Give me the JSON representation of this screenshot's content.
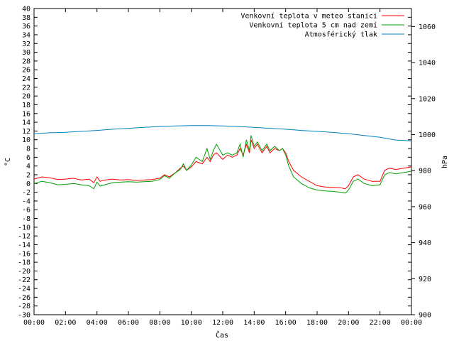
{
  "chart_data": {
    "type": "line",
    "xlabel": "Čas",
    "ylabel_left": "°C",
    "ylabel_right": "hPa",
    "x_ticks": [
      "00:00",
      "02:00",
      "04:00",
      "06:00",
      "08:00",
      "10:00",
      "12:00",
      "14:00",
      "16:00",
      "18:00",
      "20:00",
      "22:00",
      "00:00"
    ],
    "x_range_hours": [
      0,
      24
    ],
    "ylim_left": [
      -30,
      40
    ],
    "ylim_right": [
      900,
      1070
    ],
    "y_ticks_left": [
      "40",
      "38",
      "36",
      "34",
      "32",
      "30",
      "28",
      "26",
      "24",
      "22",
      "20",
      "18",
      "16",
      "14",
      "12",
      "10",
      "8",
      "6",
      "4",
      "2",
      "0",
      "-2",
      "-4",
      "-6",
      "-8",
      "-10",
      "-12",
      "-14",
      "-16",
      "-18",
      "-20",
      "-22",
      "-24",
      "-26",
      "-28",
      "-30"
    ],
    "y_ticks_right": [
      "1060",
      "1040",
      "1020",
      "1000",
      "980",
      "960",
      "940",
      "920",
      "900"
    ],
    "grid": false,
    "legend_position": "top-right",
    "series": [
      {
        "name": "Venkovní teplota v meteo stanici",
        "axis": "left",
        "color": "#ff0000",
        "x": [
          0,
          0.5,
          1,
          1.5,
          2,
          2.5,
          3,
          3.5,
          3.8,
          4,
          4.2,
          4.5,
          5,
          5.5,
          6,
          6.5,
          7,
          7.5,
          8,
          8.3,
          8.6,
          9,
          9.3,
          9.5,
          9.7,
          10,
          10.3,
          10.7,
          11,
          11.2,
          11.4,
          11.6,
          12,
          12.3,
          12.6,
          12.9,
          13.1,
          13.3,
          13.5,
          13.7,
          13.8,
          14,
          14.2,
          14.5,
          14.8,
          15,
          15.3,
          15.6,
          15.8,
          16,
          16.2,
          16.5,
          17,
          17.5,
          18,
          18.5,
          19,
          19.5,
          19.8,
          20,
          20.3,
          20.6,
          21,
          21.5,
          22,
          22.3,
          22.6,
          23,
          23.5,
          24
        ],
        "y": [
          1,
          1.5,
          1.3,
          0.9,
          1.0,
          1.2,
          0.8,
          1.0,
          0.2,
          1.5,
          0.5,
          0.8,
          1.0,
          0.8,
          0.9,
          0.7,
          0.8,
          0.9,
          1.2,
          2,
          1.5,
          2.5,
          3.5,
          4,
          3,
          3.8,
          5,
          4.5,
          6,
          5,
          6.5,
          7,
          5.5,
          6.5,
          6,
          6.5,
          8,
          6.5,
          9,
          7,
          10,
          8,
          9,
          7,
          8.5,
          7,
          8,
          7.5,
          8,
          7,
          5,
          3,
          1.5,
          0.5,
          -0.5,
          -0.8,
          -0.9,
          -1.0,
          -1.2,
          -0.5,
          1.5,
          2,
          1,
          0.5,
          0.5,
          3,
          3.5,
          3.2,
          3.5,
          3.8
        ]
      },
      {
        "name": "Venkovní teplota 5 cm nad zemí",
        "axis": "left",
        "color": "#00a000",
        "x": [
          0,
          0.5,
          1,
          1.5,
          2,
          2.5,
          3,
          3.5,
          3.8,
          4,
          4.2,
          4.5,
          5,
          5.5,
          6,
          6.5,
          7,
          7.5,
          8,
          8.3,
          8.6,
          9,
          9.3,
          9.5,
          9.7,
          10,
          10.3,
          10.7,
          11,
          11.2,
          11.4,
          11.6,
          12,
          12.3,
          12.6,
          12.9,
          13.1,
          13.3,
          13.5,
          13.7,
          13.8,
          14,
          14.2,
          14.5,
          14.8,
          15,
          15.3,
          15.6,
          15.8,
          16,
          16.2,
          16.5,
          17,
          17.5,
          18,
          18.5,
          19,
          19.5,
          19.8,
          20,
          20.3,
          20.6,
          21,
          21.5,
          22,
          22.3,
          22.6,
          23,
          23.5,
          24
        ],
        "y": [
          0,
          0.5,
          0.2,
          -0.3,
          -0.2,
          0,
          -0.3,
          -0.5,
          -1.2,
          0.3,
          -0.6,
          -0.3,
          0.2,
          0.3,
          0.4,
          0.3,
          0.4,
          0.5,
          0.9,
          1.8,
          1.2,
          2.5,
          3.2,
          4.5,
          3,
          4.2,
          6,
          5,
          8,
          5.5,
          7.5,
          9,
          6.5,
          7,
          6.5,
          7,
          9,
          6,
          10,
          7.5,
          11,
          8.5,
          9.5,
          7.5,
          9,
          7.5,
          8.5,
          7.5,
          8,
          6.5,
          4,
          1.5,
          0,
          -1,
          -1.5,
          -1.7,
          -1.8,
          -2,
          -2.2,
          -1.5,
          0.5,
          1,
          0,
          -0.5,
          -0.3,
          2,
          2.5,
          2.2,
          2.5,
          2.8
        ]
      },
      {
        "name": "Atmosférický tlak",
        "axis": "right",
        "color": "#0080c0",
        "x": [
          0,
          1,
          2,
          3,
          4,
          5,
          6,
          7,
          8,
          9,
          10,
          11,
          12,
          13,
          14,
          15,
          16,
          17,
          18,
          19,
          20,
          21,
          22,
          23,
          24
        ],
        "y": [
          1000.5,
          1001,
          1001.3,
          1001.8,
          1002.3,
          1003,
          1003.5,
          1004,
          1004.5,
          1004.8,
          1005,
          1005,
          1004.8,
          1004.5,
          1004,
          1003.5,
          1003,
          1002.3,
          1001.8,
          1001.2,
          1000.5,
          999.5,
          998.5,
          997,
          996.5
        ]
      }
    ]
  }
}
